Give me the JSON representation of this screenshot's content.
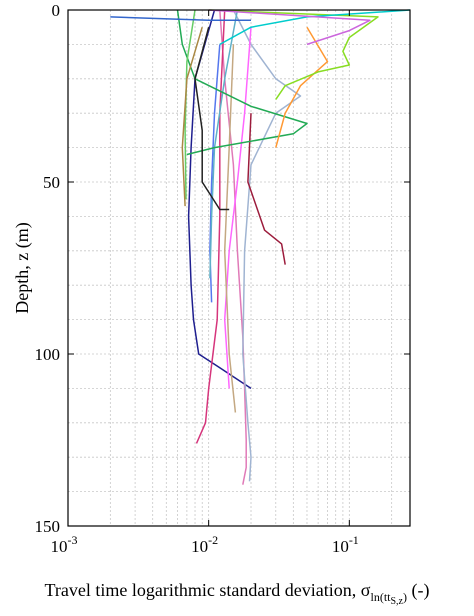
{
  "chart_data": {
    "type": "line",
    "title": "",
    "xlabel": "Travel time logarithmic standard deviation, σ",
    "xlabel_subscript": "ln(tt",
    "xlabel_subsubscript": "S,z",
    "xlabel_subscript_close": ")",
    "xlabel_unit": " (-)",
    "ylabel": "Depth, z (m)",
    "x_scale": "log",
    "xlim": [
      0.001,
      0.27
    ],
    "ylim": [
      0,
      150
    ],
    "y_reversed": true,
    "grid": true,
    "x_ticks": [
      {
        "value": 0.001,
        "base": "10",
        "exp": "-3"
      },
      {
        "value": 0.01,
        "base": "10",
        "exp": "-2"
      },
      {
        "value": 0.1,
        "base": "10",
        "exp": "-1"
      }
    ],
    "y_ticks": [
      0,
      50,
      100,
      150
    ],
    "series": [
      {
        "color": "#1f1f8f",
        "points": [
          [
            0.011,
            0
          ],
          [
            0.008,
            20
          ],
          [
            0.0075,
            40
          ],
          [
            0.0072,
            60
          ],
          [
            0.0075,
            80
          ],
          [
            0.0078,
            90
          ],
          [
            0.0085,
            100
          ],
          [
            0.012,
            104
          ],
          [
            0.02,
            110
          ]
        ]
      },
      {
        "color": "#e07ab8",
        "points": [
          [
            0.012,
            0
          ],
          [
            0.013,
            20
          ],
          [
            0.015,
            45
          ],
          [
            0.016,
            70
          ],
          [
            0.0175,
            95
          ],
          [
            0.018,
            110
          ],
          [
            0.0185,
            125
          ],
          [
            0.0185,
            133
          ],
          [
            0.0175,
            138
          ]
        ]
      },
      {
        "color": "#a0b4d2",
        "points": [
          [
            0.015,
            0
          ],
          [
            0.02,
            10
          ],
          [
            0.03,
            20
          ],
          [
            0.045,
            25
          ],
          [
            0.03,
            30
          ],
          [
            0.02,
            45
          ],
          [
            0.018,
            70
          ],
          [
            0.0175,
            100
          ],
          [
            0.019,
            120
          ],
          [
            0.02,
            130
          ],
          [
            0.0195,
            137
          ]
        ]
      },
      {
        "color": "#d6357c",
        "points": [
          [
            0.013,
            0
          ],
          [
            0.012,
            30
          ],
          [
            0.012,
            60
          ],
          [
            0.0115,
            90
          ],
          [
            0.01,
            110
          ],
          [
            0.0095,
            120
          ],
          [
            0.0082,
            126
          ]
        ]
      },
      {
        "color": "#9c1c3c",
        "points": [
          [
            0.02,
            30
          ],
          [
            0.019,
            50
          ],
          [
            0.025,
            64
          ],
          [
            0.033,
            68
          ],
          [
            0.035,
            74
          ]
        ]
      },
      {
        "color": "#5577ee",
        "points": [
          [
            0.012,
            10
          ],
          [
            0.011,
            30
          ],
          [
            0.0105,
            50
          ],
          [
            0.0102,
            70
          ],
          [
            0.0105,
            85
          ]
        ]
      },
      {
        "color": "#ff66ff",
        "points": [
          [
            0.02,
            5
          ],
          [
            0.018,
            30
          ],
          [
            0.016,
            50
          ],
          [
            0.014,
            70
          ],
          [
            0.013,
            90
          ],
          [
            0.014,
            110
          ]
        ]
      },
      {
        "color": "#5fb0c8",
        "points": [
          [
            0.016,
            0
          ],
          [
            0.013,
            20
          ],
          [
            0.011,
            40
          ],
          [
            0.0105,
            60
          ],
          [
            0.0102,
            78
          ]
        ]
      },
      {
        "color": "#c4a882",
        "points": [
          [
            0.015,
            10
          ],
          [
            0.014,
            40
          ],
          [
            0.013,
            70
          ],
          [
            0.014,
            100
          ],
          [
            0.0155,
            117
          ]
        ]
      },
      {
        "color": "#22aa55",
        "points": [
          [
            0.006,
            0
          ],
          [
            0.0065,
            10
          ],
          [
            0.008,
            20
          ],
          [
            0.02,
            28
          ],
          [
            0.05,
            33
          ],
          [
            0.04,
            36
          ],
          [
            0.011,
            40
          ],
          [
            0.007,
            42
          ]
        ]
      },
      {
        "color": "#ff9933",
        "points": [
          [
            0.05,
            5
          ],
          [
            0.07,
            15
          ],
          [
            0.045,
            22
          ],
          [
            0.035,
            30
          ],
          [
            0.03,
            40
          ]
        ]
      },
      {
        "color": "#88dd22",
        "points": [
          [
            0.01,
            0
          ],
          [
            0.16,
            2
          ],
          [
            0.1,
            8
          ],
          [
            0.09,
            12
          ],
          [
            0.1,
            16
          ],
          [
            0.06,
            18
          ],
          [
            0.035,
            22
          ],
          [
            0.03,
            26
          ]
        ]
      },
      {
        "color": "#00cccc",
        "points": [
          [
            0.27,
            0
          ],
          [
            0.05,
            2
          ],
          [
            0.02,
            5
          ],
          [
            0.012,
            10
          ]
        ]
      },
      {
        "color": "#cc66dd",
        "points": [
          [
            0.01,
            0
          ],
          [
            0.14,
            3
          ],
          [
            0.1,
            6
          ],
          [
            0.05,
            10
          ]
        ]
      },
      {
        "color": "#222222",
        "points": [
          [
            0.01,
            5
          ],
          [
            0.008,
            20
          ],
          [
            0.009,
            35
          ],
          [
            0.009,
            50
          ],
          [
            0.012,
            58
          ],
          [
            0.014,
            58
          ]
        ]
      },
      {
        "color": "#66cc66",
        "points": [
          [
            0.008,
            0
          ],
          [
            0.007,
            15
          ],
          [
            0.0068,
            35
          ],
          [
            0.0069,
            55
          ]
        ]
      },
      {
        "color": "#3366cc",
        "points": [
          [
            0.002,
            2
          ],
          [
            0.01,
            3
          ],
          [
            0.02,
            3
          ]
        ]
      },
      {
        "color": "#aa8844",
        "points": [
          [
            0.009,
            5
          ],
          [
            0.007,
            20
          ],
          [
            0.0065,
            40
          ],
          [
            0.0068,
            57
          ]
        ]
      }
    ]
  }
}
